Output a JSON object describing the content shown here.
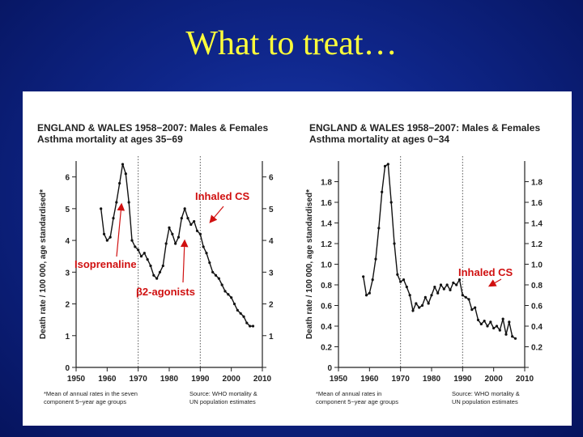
{
  "slide": {
    "title": "What to treat…"
  },
  "chart_data": [
    {
      "type": "line",
      "title": "ENGLAND & WALES 1958−2007: Males & Females",
      "subtitle": "Asthma mortality at ages 35−69",
      "ylabel": "Death rate / 100 000, age standardised*",
      "xlim": [
        1950,
        2010
      ],
      "ylim": [
        0,
        6.5
      ],
      "xticks": [
        "1950",
        "1960",
        "1970",
        "1980",
        "1990",
        "2000",
        "2010"
      ],
      "yticks": [
        "0",
        "1",
        "2",
        "3",
        "4",
        "5",
        "6"
      ],
      "vlines": [
        1970,
        1990
      ],
      "x": [
        1958,
        1959,
        1960,
        1961,
        1962,
        1963,
        1964,
        1965,
        1966,
        1967,
        1968,
        1969,
        1970,
        1971,
        1972,
        1973,
        1974,
        1975,
        1976,
        1977,
        1978,
        1979,
        1980,
        1981,
        1982,
        1983,
        1984,
        1985,
        1986,
        1987,
        1988,
        1989,
        1990,
        1991,
        1992,
        1993,
        1994,
        1995,
        1996,
        1997,
        1998,
        1999,
        2000,
        2001,
        2002,
        2003,
        2004,
        2005,
        2006,
        2007
      ],
      "values": [
        5.0,
        4.2,
        4.0,
        4.1,
        4.7,
        5.2,
        5.8,
        6.4,
        6.1,
        5.2,
        4.0,
        3.8,
        3.7,
        3.5,
        3.6,
        3.4,
        3.2,
        2.9,
        2.8,
        3.0,
        3.2,
        3.9,
        4.4,
        4.2,
        3.9,
        4.1,
        4.7,
        5.0,
        4.7,
        4.5,
        4.6,
        4.3,
        4.2,
        3.8,
        3.6,
        3.3,
        3.0,
        2.9,
        2.8,
        2.6,
        2.4,
        2.3,
        2.2,
        2.0,
        1.8,
        1.7,
        1.6,
        1.4,
        1.3,
        1.3
      ],
      "annotations": [
        {
          "text": "Inhaled CS"
        },
        {
          "text": "Isoprenaline"
        },
        {
          "text": "β2-agonists"
        }
      ],
      "footnote_left": [
        "*Mean of annual rates in the seven",
        "component 5−year age groups"
      ],
      "footnote_right": [
        "Source: WHO mortality &",
        "UN population estimates"
      ],
      "colors": {
        "line": "#111111",
        "annotation": "#d01010"
      }
    },
    {
      "type": "line",
      "title": "ENGLAND & WALES 1958−2007: Males & Females",
      "subtitle": "Asthma mortality at ages 0−34",
      "ylabel": "Death rate / 100 000, age standardised*",
      "xlim": [
        1950,
        2010
      ],
      "ylim": [
        0,
        2.0
      ],
      "xticks": [
        "1950",
        "1960",
        "1970",
        "1980",
        "1990",
        "2000",
        "2010"
      ],
      "yticks": [
        "0",
        "0.2",
        "0.4",
        "0.6",
        "0.8",
        "1.0",
        "1.2",
        "1.4",
        "1.6",
        "1.8"
      ],
      "vlines": [
        1970,
        1990
      ],
      "x": [
        1958,
        1959,
        1960,
        1961,
        1962,
        1963,
        1964,
        1965,
        1966,
        1967,
        1968,
        1969,
        1970,
        1971,
        1972,
        1973,
        1974,
        1975,
        1976,
        1977,
        1978,
        1979,
        1980,
        1981,
        1982,
        1983,
        1984,
        1985,
        1986,
        1987,
        1988,
        1989,
        1990,
        1991,
        1992,
        1993,
        1994,
        1995,
        1996,
        1997,
        1998,
        1999,
        2000,
        2001,
        2002,
        2003,
        2004,
        2005,
        2006,
        2007
      ],
      "values": [
        0.88,
        0.7,
        0.72,
        0.85,
        1.05,
        1.35,
        1.7,
        1.95,
        1.97,
        1.6,
        1.2,
        0.9,
        0.83,
        0.85,
        0.78,
        0.7,
        0.55,
        0.62,
        0.58,
        0.6,
        0.68,
        0.62,
        0.7,
        0.78,
        0.72,
        0.8,
        0.76,
        0.8,
        0.75,
        0.82,
        0.8,
        0.85,
        0.7,
        0.68,
        0.66,
        0.56,
        0.58,
        0.46,
        0.42,
        0.45,
        0.4,
        0.44,
        0.38,
        0.4,
        0.36,
        0.47,
        0.32,
        0.44,
        0.3,
        0.28
      ],
      "annotations": [
        {
          "text": "Inhaled CS"
        }
      ],
      "footnote_left": [
        "*Mean of annual rates in",
        "component 5−year age groups"
      ],
      "footnote_right": [
        "Source: WHO mortality &",
        "UN population estimates"
      ],
      "colors": {
        "line": "#111111",
        "annotation": "#d01010"
      }
    }
  ]
}
